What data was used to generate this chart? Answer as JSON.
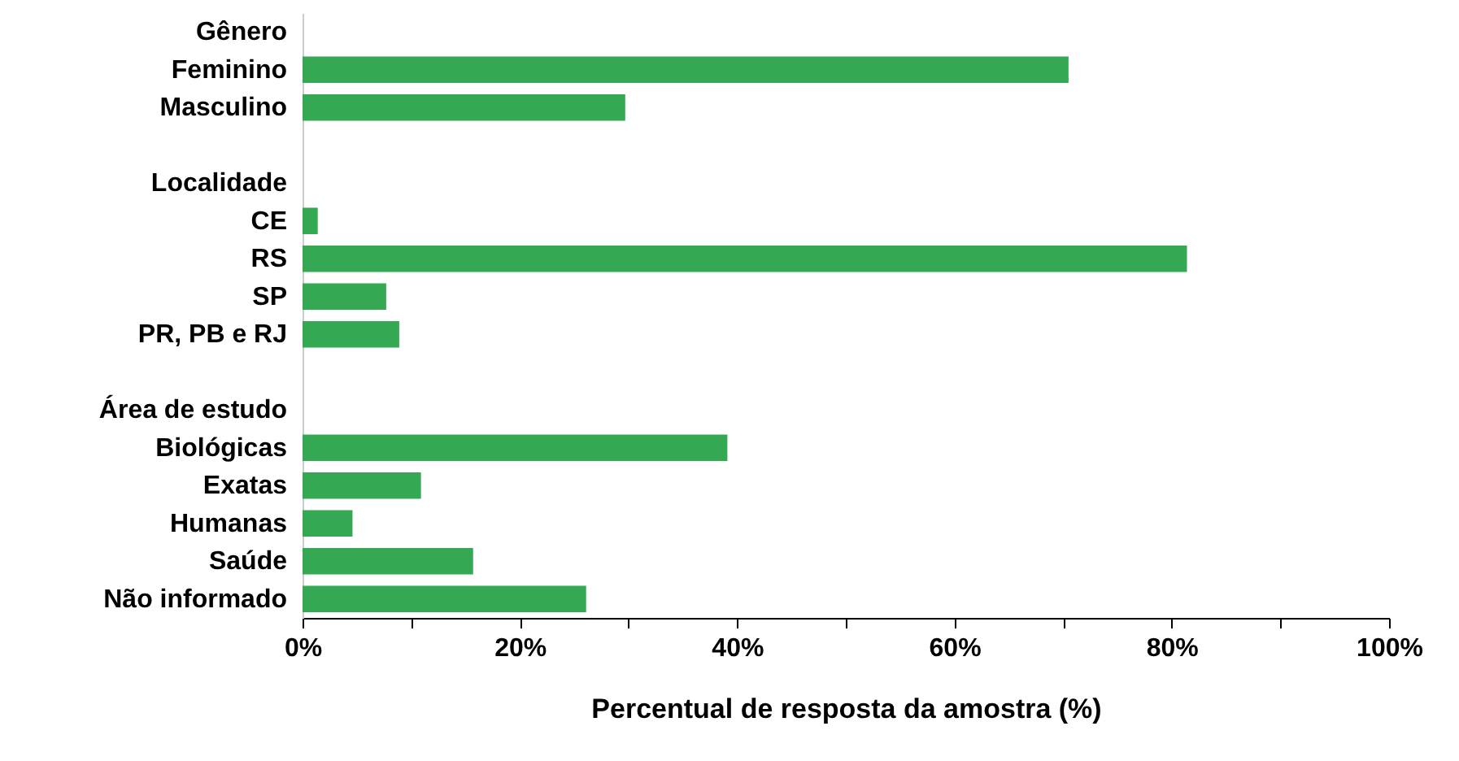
{
  "chart_data": {
    "type": "bar",
    "orientation": "horizontal",
    "xlabel": "Percentual de resposta da amostra (%)",
    "categories": [
      "Gênero",
      "Feminino",
      "Masculino",
      null,
      "Localidade",
      "CE",
      "RS",
      "SP",
      "PR, PB e RJ",
      null,
      "Área de estudo",
      "Biológicas",
      "Exatas",
      "Humanas",
      "Saúde",
      "Não informado"
    ],
    "values": [
      null,
      70.5,
      29.7,
      null,
      null,
      1.4,
      81.4,
      7.7,
      8.9,
      null,
      null,
      39.1,
      10.9,
      4.6,
      15.7,
      26.1
    ],
    "color": "#35a853",
    "xlim": [
      0,
      100
    ],
    "xticks": [
      {
        "value": 0,
        "label": "0%"
      },
      {
        "value": 10,
        "label": null
      },
      {
        "value": 20,
        "label": "20%"
      },
      {
        "value": 30,
        "label": null
      },
      {
        "value": 40,
        "label": "40%"
      },
      {
        "value": 50,
        "label": null
      },
      {
        "value": 60,
        "label": "60%"
      },
      {
        "value": 70,
        "label": null
      },
      {
        "value": 80,
        "label": "80%"
      },
      {
        "value": 90,
        "label": null
      },
      {
        "value": 100,
        "label": "100%"
      }
    ],
    "grid": false
  }
}
